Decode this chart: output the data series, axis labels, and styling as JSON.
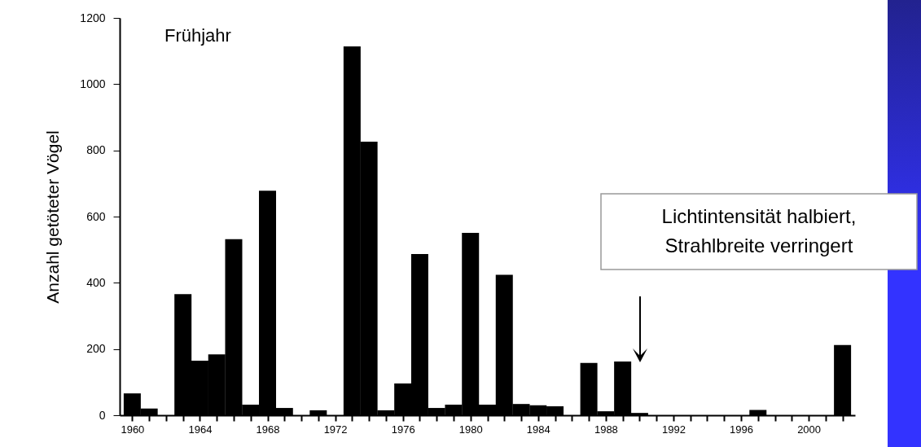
{
  "chart_data": {
    "type": "bar",
    "ylabel": "Anzahl getöteter Vögel",
    "x": [
      1960,
      1961,
      1962,
      1963,
      1964,
      1965,
      1966,
      1967,
      1968,
      1969,
      1970,
      1971,
      1972,
      1973,
      1974,
      1975,
      1976,
      1977,
      1978,
      1979,
      1980,
      1981,
      1982,
      1983,
      1984,
      1985,
      1986,
      1987,
      1988,
      1989,
      1990,
      1991,
      1992,
      1993,
      1994,
      1995,
      1996,
      1997,
      1998,
      1999,
      2000,
      2001,
      2002
    ],
    "values": [
      66,
      20,
      0,
      366,
      165,
      184,
      532,
      32,
      678,
      22,
      0,
      15,
      0,
      1114,
      826,
      15,
      96,
      487,
      22,
      32,
      551,
      32,
      424,
      34,
      30,
      27,
      0,
      158,
      12,
      162,
      7,
      0,
      0,
      0,
      0,
      0,
      0,
      16,
      0,
      0,
      0,
      0,
      212
    ],
    "color": "#000000",
    "xlim": [
      1959.5,
      2002.5
    ],
    "xticks": [
      1960,
      {
        "value": 1961,
        "label": null
      },
      {
        "value": 1962,
        "label": null
      },
      {
        "value": 1963,
        "label": null
      },
      1964,
      {
        "value": 1965,
        "label": null
      },
      {
        "value": 1966,
        "label": null
      },
      {
        "value": 1967,
        "label": null
      },
      1968,
      {
        "value": 1969,
        "label": null
      },
      {
        "value": 1970,
        "label": null
      },
      {
        "value": 1971,
        "label": null
      },
      1972,
      {
        "value": 1973,
        "label": null
      },
      {
        "value": 1974,
        "label": null
      },
      {
        "value": 1975,
        "label": null
      },
      1976,
      {
        "value": 1977,
        "label": null
      },
      {
        "value": 1978,
        "label": null
      },
      {
        "value": 1979,
        "label": null
      },
      1980,
      {
        "value": 1981,
        "label": null
      },
      {
        "value": 1982,
        "label": null
      },
      {
        "value": 1983,
        "label": null
      },
      1984,
      {
        "value": 1985,
        "label": null
      },
      {
        "value": 1986,
        "label": null
      },
      {
        "value": 1987,
        "label": null
      },
      1988,
      {
        "value": 1989,
        "label": null
      },
      {
        "value": 1990,
        "label": null
      },
      {
        "value": 1991,
        "label": null
      },
      1992,
      {
        "value": 1993,
        "label": null
      },
      {
        "value": 1994,
        "label": null
      },
      {
        "value": 1995,
        "label": null
      },
      1996,
      {
        "value": 1997,
        "label": null
      },
      {
        "value": 1998,
        "label": null
      },
      {
        "value": 1999,
        "label": null
      },
      2000,
      {
        "value": 2001,
        "label": null
      },
      {
        "value": 2002,
        "label": null
      }
    ],
    "ylim": [
      0,
      1200
    ],
    "yticks": [
      0,
      200,
      400,
      600,
      800,
      1000,
      1200
    ],
    "grid": false,
    "annotations": [
      "Frühjahr",
      "Lichtintensität halbiert,\nStrahlbreite verringert"
    ]
  }
}
